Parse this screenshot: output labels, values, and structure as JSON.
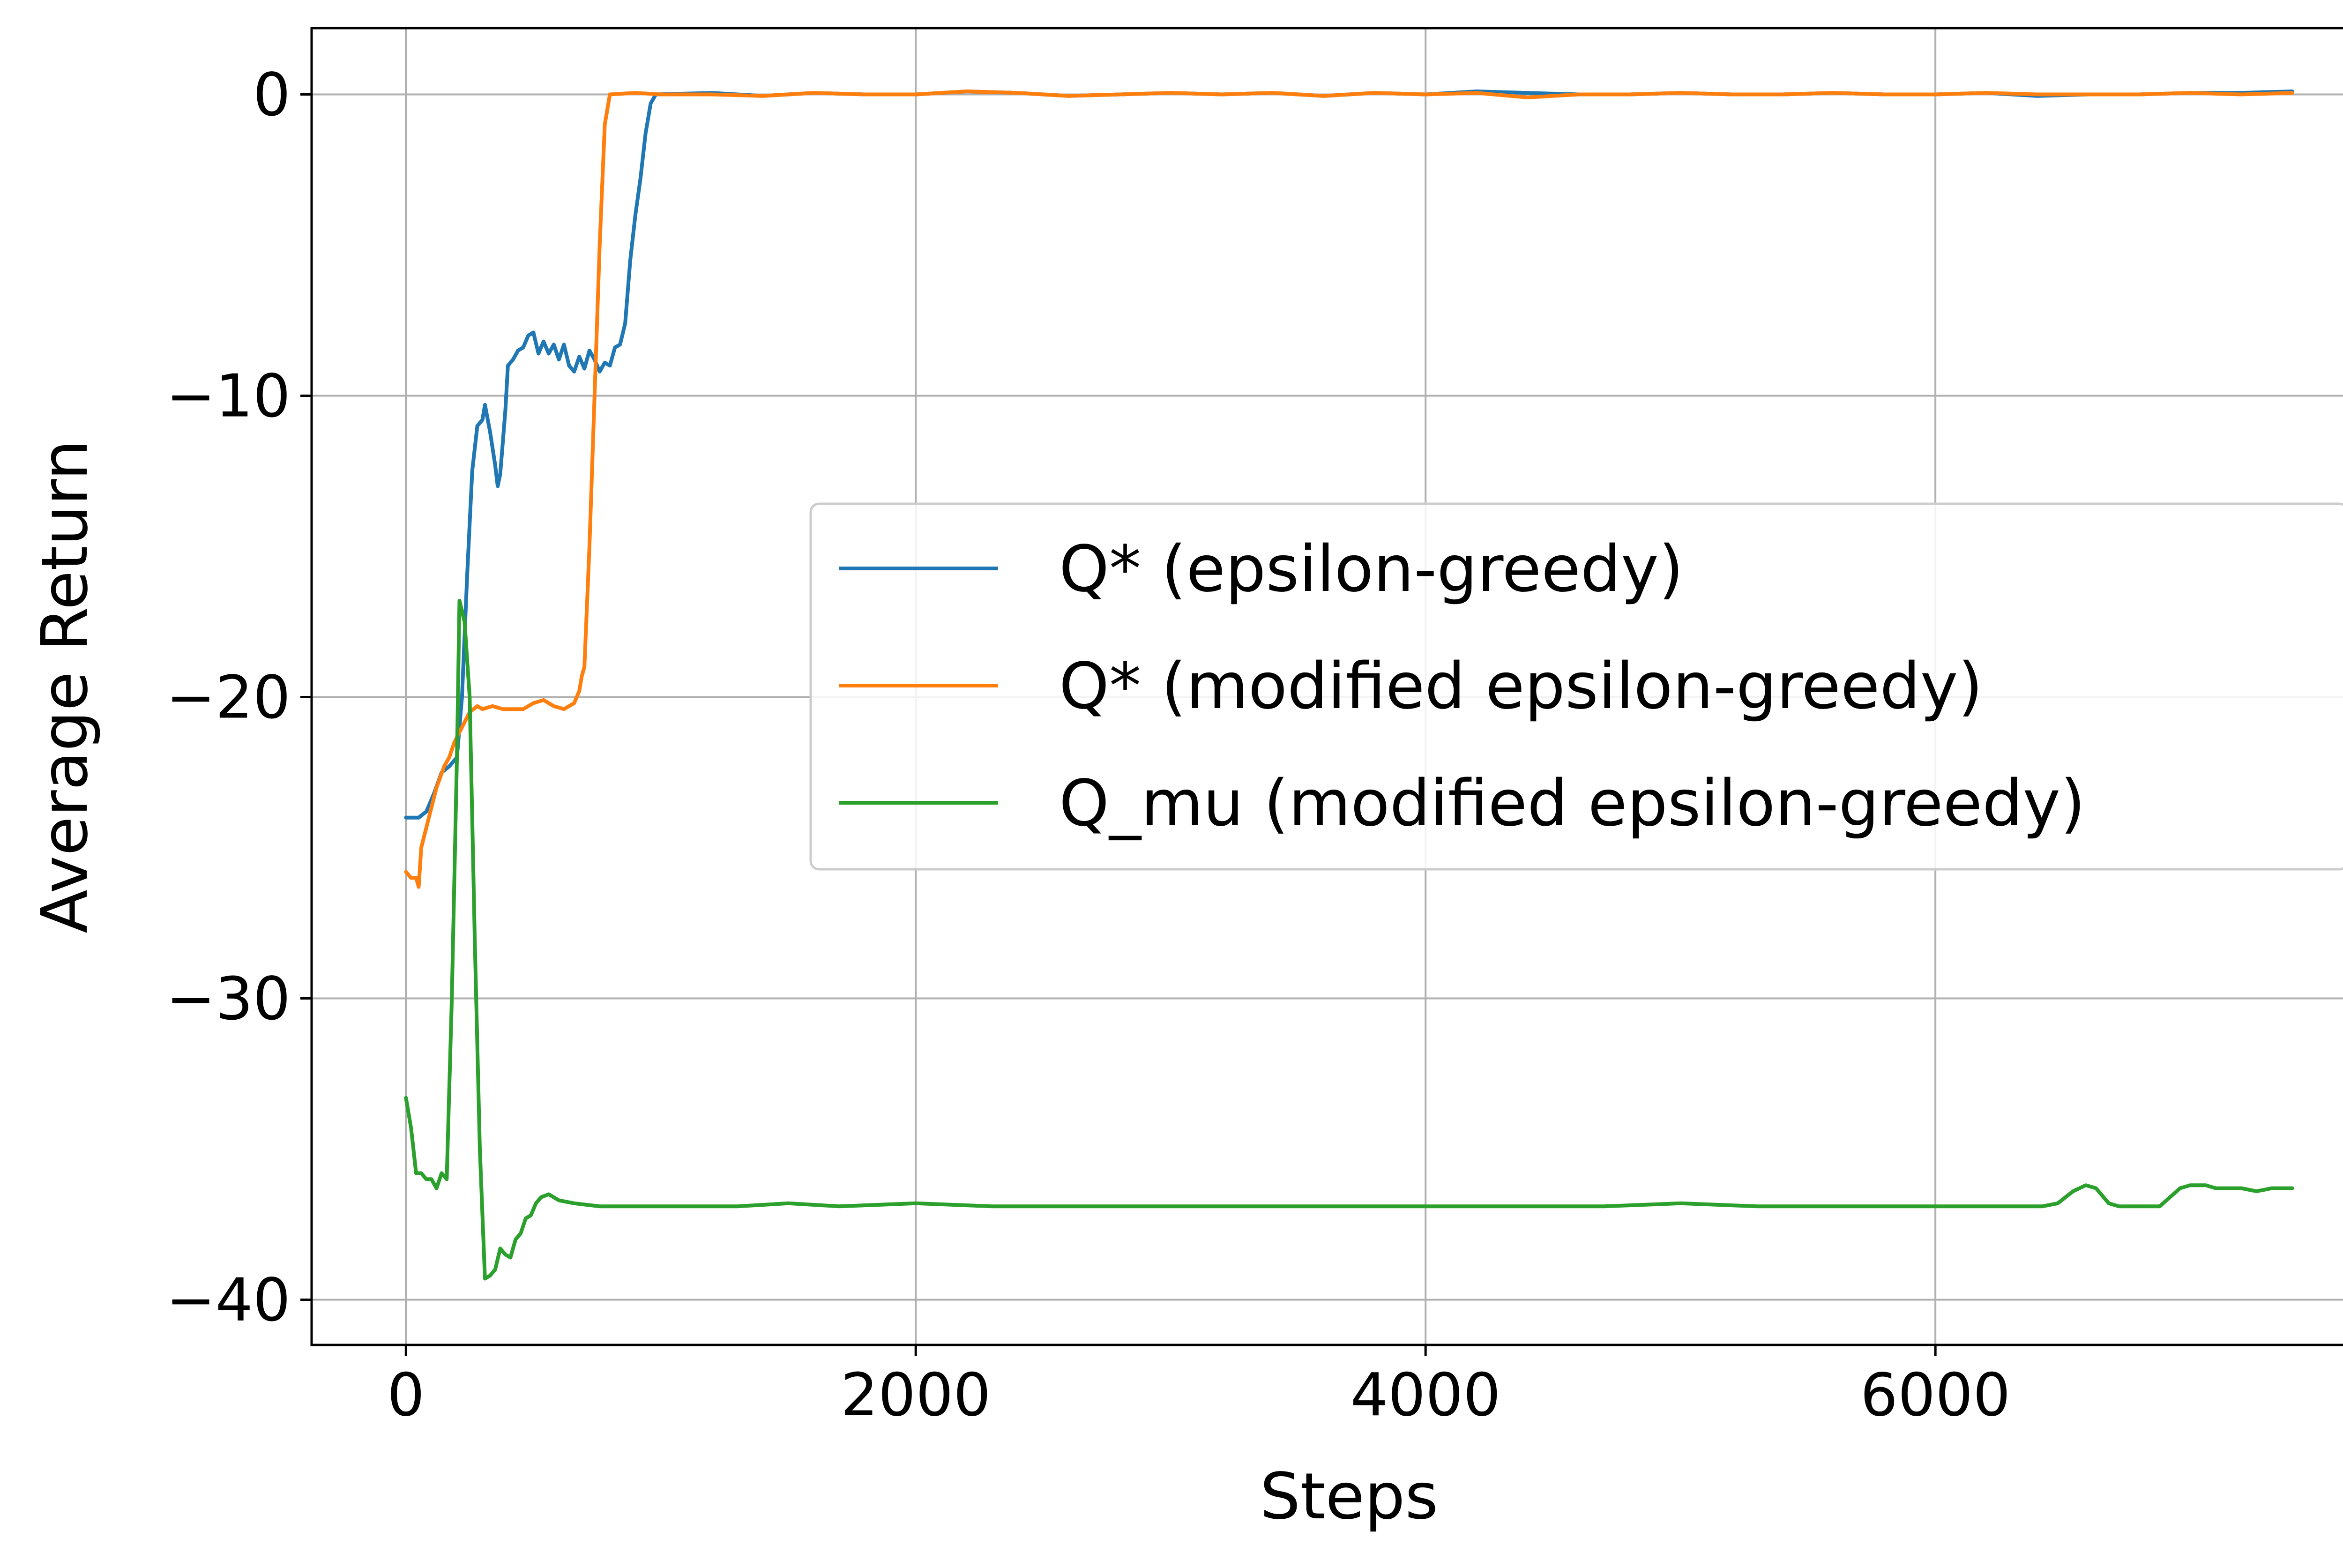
{
  "chart_data": {
    "type": "line",
    "xlabel": "Steps",
    "ylabel": "Average Return",
    "xlim": [
      -370,
      7770
    ],
    "ylim": [
      -41.5,
      2.2
    ],
    "xticks": [
      0,
      2000,
      4000,
      6000
    ],
    "yticks": [
      0,
      -10,
      -20,
      -30,
      -40
    ],
    "xtick_labels": [
      "0",
      "2000",
      "4000",
      "6000"
    ],
    "ytick_labels": [
      "0",
      "−10",
      "−20",
      "−30",
      "−40"
    ],
    "grid": true,
    "legend_position": "center-right",
    "series": [
      {
        "name": "Q* (epsilon-greedy)",
        "color": "#1f77b4",
        "points": [
          [
            0,
            -24
          ],
          [
            50,
            -24
          ],
          [
            80,
            -23.8
          ],
          [
            110,
            -23.2
          ],
          [
            140,
            -22.5
          ],
          [
            170,
            -22.3
          ],
          [
            200,
            -22
          ],
          [
            220,
            -20
          ],
          [
            240,
            -16
          ],
          [
            260,
            -12.5
          ],
          [
            280,
            -11
          ],
          [
            300,
            -10.8
          ],
          [
            310,
            -10.3
          ],
          [
            330,
            -11.2
          ],
          [
            350,
            -12.3
          ],
          [
            360,
            -13
          ],
          [
            370,
            -12.6
          ],
          [
            390,
            -10.5
          ],
          [
            400,
            -9
          ],
          [
            420,
            -8.8
          ],
          [
            440,
            -8.5
          ],
          [
            460,
            -8.4
          ],
          [
            480,
            -8
          ],
          [
            500,
            -7.9
          ],
          [
            520,
            -8.6
          ],
          [
            540,
            -8.2
          ],
          [
            560,
            -8.6
          ],
          [
            580,
            -8.3
          ],
          [
            600,
            -8.8
          ],
          [
            620,
            -8.3
          ],
          [
            640,
            -9
          ],
          [
            660,
            -9.2
          ],
          [
            680,
            -8.7
          ],
          [
            700,
            -9.1
          ],
          [
            720,
            -8.5
          ],
          [
            740,
            -8.8
          ],
          [
            760,
            -9.2
          ],
          [
            780,
            -8.9
          ],
          [
            800,
            -9
          ],
          [
            820,
            -8.4
          ],
          [
            840,
            -8.3
          ],
          [
            860,
            -7.6
          ],
          [
            880,
            -5.5
          ],
          [
            900,
            -4
          ],
          [
            920,
            -2.8
          ],
          [
            940,
            -1.3
          ],
          [
            960,
            -0.3
          ],
          [
            980,
            0
          ],
          [
            1200,
            0.05
          ],
          [
            1400,
            -0.05
          ],
          [
            1600,
            0.05
          ],
          [
            1800,
            0
          ],
          [
            2000,
            0
          ],
          [
            2200,
            0.1
          ],
          [
            2400,
            0.05
          ],
          [
            2600,
            -0.05
          ],
          [
            2800,
            0
          ],
          [
            3000,
            0.05
          ],
          [
            3200,
            0
          ],
          [
            3400,
            0.05
          ],
          [
            3600,
            -0.05
          ],
          [
            3800,
            0.05
          ],
          [
            4000,
            0
          ],
          [
            4200,
            0.1
          ],
          [
            4400,
            0.05
          ],
          [
            4600,
            0
          ],
          [
            4800,
            0
          ],
          [
            5000,
            0.05
          ],
          [
            5200,
            0
          ],
          [
            5400,
            0
          ],
          [
            5600,
            0.05
          ],
          [
            5800,
            0
          ],
          [
            6000,
            0
          ],
          [
            6200,
            0.05
          ],
          [
            6400,
            -0.05
          ],
          [
            6600,
            0
          ],
          [
            6800,
            0
          ],
          [
            7000,
            0.05
          ],
          [
            7200,
            0.05
          ],
          [
            7400,
            0.1
          ]
        ]
      },
      {
        "name": "Q* (modified epsilon-greedy)",
        "color": "#ff7f0e",
        "points": [
          [
            0,
            -25.8
          ],
          [
            20,
            -26
          ],
          [
            40,
            -26
          ],
          [
            50,
            -26.3
          ],
          [
            60,
            -25
          ],
          [
            90,
            -24
          ],
          [
            120,
            -23
          ],
          [
            150,
            -22.3
          ],
          [
            170,
            -22
          ],
          [
            190,
            -21.5
          ],
          [
            220,
            -21
          ],
          [
            250,
            -20.5
          ],
          [
            280,
            -20.3
          ],
          [
            300,
            -20.4
          ],
          [
            340,
            -20.3
          ],
          [
            380,
            -20.4
          ],
          [
            420,
            -20.4
          ],
          [
            460,
            -20.4
          ],
          [
            500,
            -20.2
          ],
          [
            540,
            -20.1
          ],
          [
            580,
            -20.3
          ],
          [
            620,
            -20.4
          ],
          [
            660,
            -20.2
          ],
          [
            680,
            -19.8
          ],
          [
            690,
            -19.3
          ],
          [
            700,
            -19
          ],
          [
            720,
            -15
          ],
          [
            740,
            -10
          ],
          [
            760,
            -5
          ],
          [
            780,
            -1
          ],
          [
            800,
            0
          ],
          [
            900,
            0.05
          ],
          [
            1000,
            0
          ],
          [
            1200,
            0
          ],
          [
            1400,
            -0.05
          ],
          [
            1600,
            0.05
          ],
          [
            1800,
            0
          ],
          [
            2000,
            0
          ],
          [
            2200,
            0.1
          ],
          [
            2400,
            0.05
          ],
          [
            2600,
            -0.05
          ],
          [
            2800,
            0
          ],
          [
            3000,
            0.05
          ],
          [
            3200,
            0
          ],
          [
            3400,
            0.05
          ],
          [
            3600,
            -0.05
          ],
          [
            3800,
            0.05
          ],
          [
            4000,
            0
          ],
          [
            4200,
            0.05
          ],
          [
            4400,
            -0.1
          ],
          [
            4600,
            0
          ],
          [
            4800,
            0
          ],
          [
            5000,
            0.05
          ],
          [
            5200,
            0
          ],
          [
            5400,
            0
          ],
          [
            5600,
            0.05
          ],
          [
            5800,
            0
          ],
          [
            6000,
            0
          ],
          [
            6200,
            0.05
          ],
          [
            6400,
            0
          ],
          [
            6600,
            0
          ],
          [
            6800,
            0
          ],
          [
            7000,
            0.05
          ],
          [
            7200,
            0
          ],
          [
            7400,
            0.05
          ]
        ]
      },
      {
        "name": "Q_mu (modified epsilon-greedy)",
        "color": "#2ca02c",
        "points": [
          [
            0,
            -33.3
          ],
          [
            20,
            -34.3
          ],
          [
            40,
            -35.8
          ],
          [
            60,
            -35.8
          ],
          [
            80,
            -36
          ],
          [
            100,
            -36
          ],
          [
            120,
            -36.3
          ],
          [
            140,
            -35.8
          ],
          [
            160,
            -36
          ],
          [
            180,
            -30
          ],
          [
            200,
            -22
          ],
          [
            210,
            -16.8
          ],
          [
            230,
            -17.5
          ],
          [
            250,
            -20
          ],
          [
            270,
            -28
          ],
          [
            290,
            -35
          ],
          [
            310,
            -39.3
          ],
          [
            330,
            -39.2
          ],
          [
            350,
            -39
          ],
          [
            370,
            -38.3
          ],
          [
            390,
            -38.5
          ],
          [
            410,
            -38.6
          ],
          [
            430,
            -38
          ],
          [
            450,
            -37.8
          ],
          [
            470,
            -37.3
          ],
          [
            490,
            -37.2
          ],
          [
            510,
            -36.8
          ],
          [
            530,
            -36.6
          ],
          [
            560,
            -36.5
          ],
          [
            600,
            -36.7
          ],
          [
            660,
            -36.8
          ],
          [
            760,
            -36.9
          ],
          [
            900,
            -36.9
          ],
          [
            1100,
            -36.9
          ],
          [
            1300,
            -36.9
          ],
          [
            1500,
            -36.8
          ],
          [
            1700,
            -36.9
          ],
          [
            2000,
            -36.8
          ],
          [
            2300,
            -36.9
          ],
          [
            2600,
            -36.9
          ],
          [
            2900,
            -36.9
          ],
          [
            3200,
            -36.9
          ],
          [
            3500,
            -36.9
          ],
          [
            3800,
            -36.9
          ],
          [
            4100,
            -36.9
          ],
          [
            4400,
            -36.9
          ],
          [
            4700,
            -36.9
          ],
          [
            5000,
            -36.8
          ],
          [
            5300,
            -36.9
          ],
          [
            5600,
            -36.9
          ],
          [
            5900,
            -36.9
          ],
          [
            6200,
            -36.9
          ],
          [
            6420,
            -36.9
          ],
          [
            6480,
            -36.8
          ],
          [
            6540,
            -36.4
          ],
          [
            6590,
            -36.2
          ],
          [
            6630,
            -36.3
          ],
          [
            6680,
            -36.8
          ],
          [
            6720,
            -36.9
          ],
          [
            6800,
            -36.9
          ],
          [
            6880,
            -36.9
          ],
          [
            6920,
            -36.6
          ],
          [
            6960,
            -36.3
          ],
          [
            7000,
            -36.2
          ],
          [
            7060,
            -36.2
          ],
          [
            7100,
            -36.3
          ],
          [
            7160,
            -36.3
          ],
          [
            7200,
            -36.3
          ],
          [
            7260,
            -36.4
          ],
          [
            7320,
            -36.3
          ],
          [
            7400,
            -36.3
          ]
        ]
      }
    ]
  }
}
